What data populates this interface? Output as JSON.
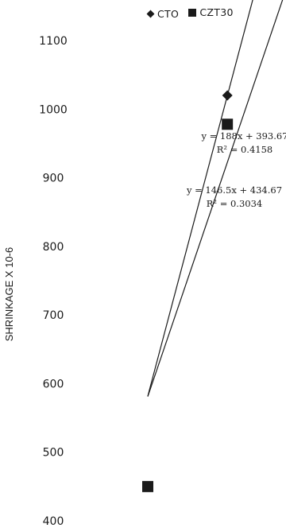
{
  "chart_data": {
    "type": "scatter",
    "title": "",
    "xlabel": "",
    "ylabel": "SHRINKAGE X 10-6",
    "ylim": [
      400,
      1100
    ],
    "yticks": [
      400,
      500,
      600,
      700,
      800,
      900,
      1000,
      1100
    ],
    "legend_position": "top",
    "grid": false,
    "series": [
      {
        "name": "CTO",
        "marker": "diamond",
        "points": [
          {
            "x": 3.33,
            "y": 1020
          }
        ],
        "trendline": {
          "slope": 188,
          "intercept": 393.67,
          "equation": "y = 188x + 393.67",
          "r2": "R² = 0.4158"
        }
      },
      {
        "name": "CZT30",
        "marker": "square",
        "points": [
          {
            "x": 1,
            "y": 450
          },
          {
            "x": 3.33,
            "y": 978
          }
        ],
        "trendline": {
          "slope": 146.5,
          "intercept": 434.67,
          "equation": "y = 146.5x + 434.67",
          "r2": "R² = 0.3034"
        }
      }
    ]
  },
  "colors": {
    "marker": "#1a1a1a",
    "line": "#1a1a1a"
  }
}
